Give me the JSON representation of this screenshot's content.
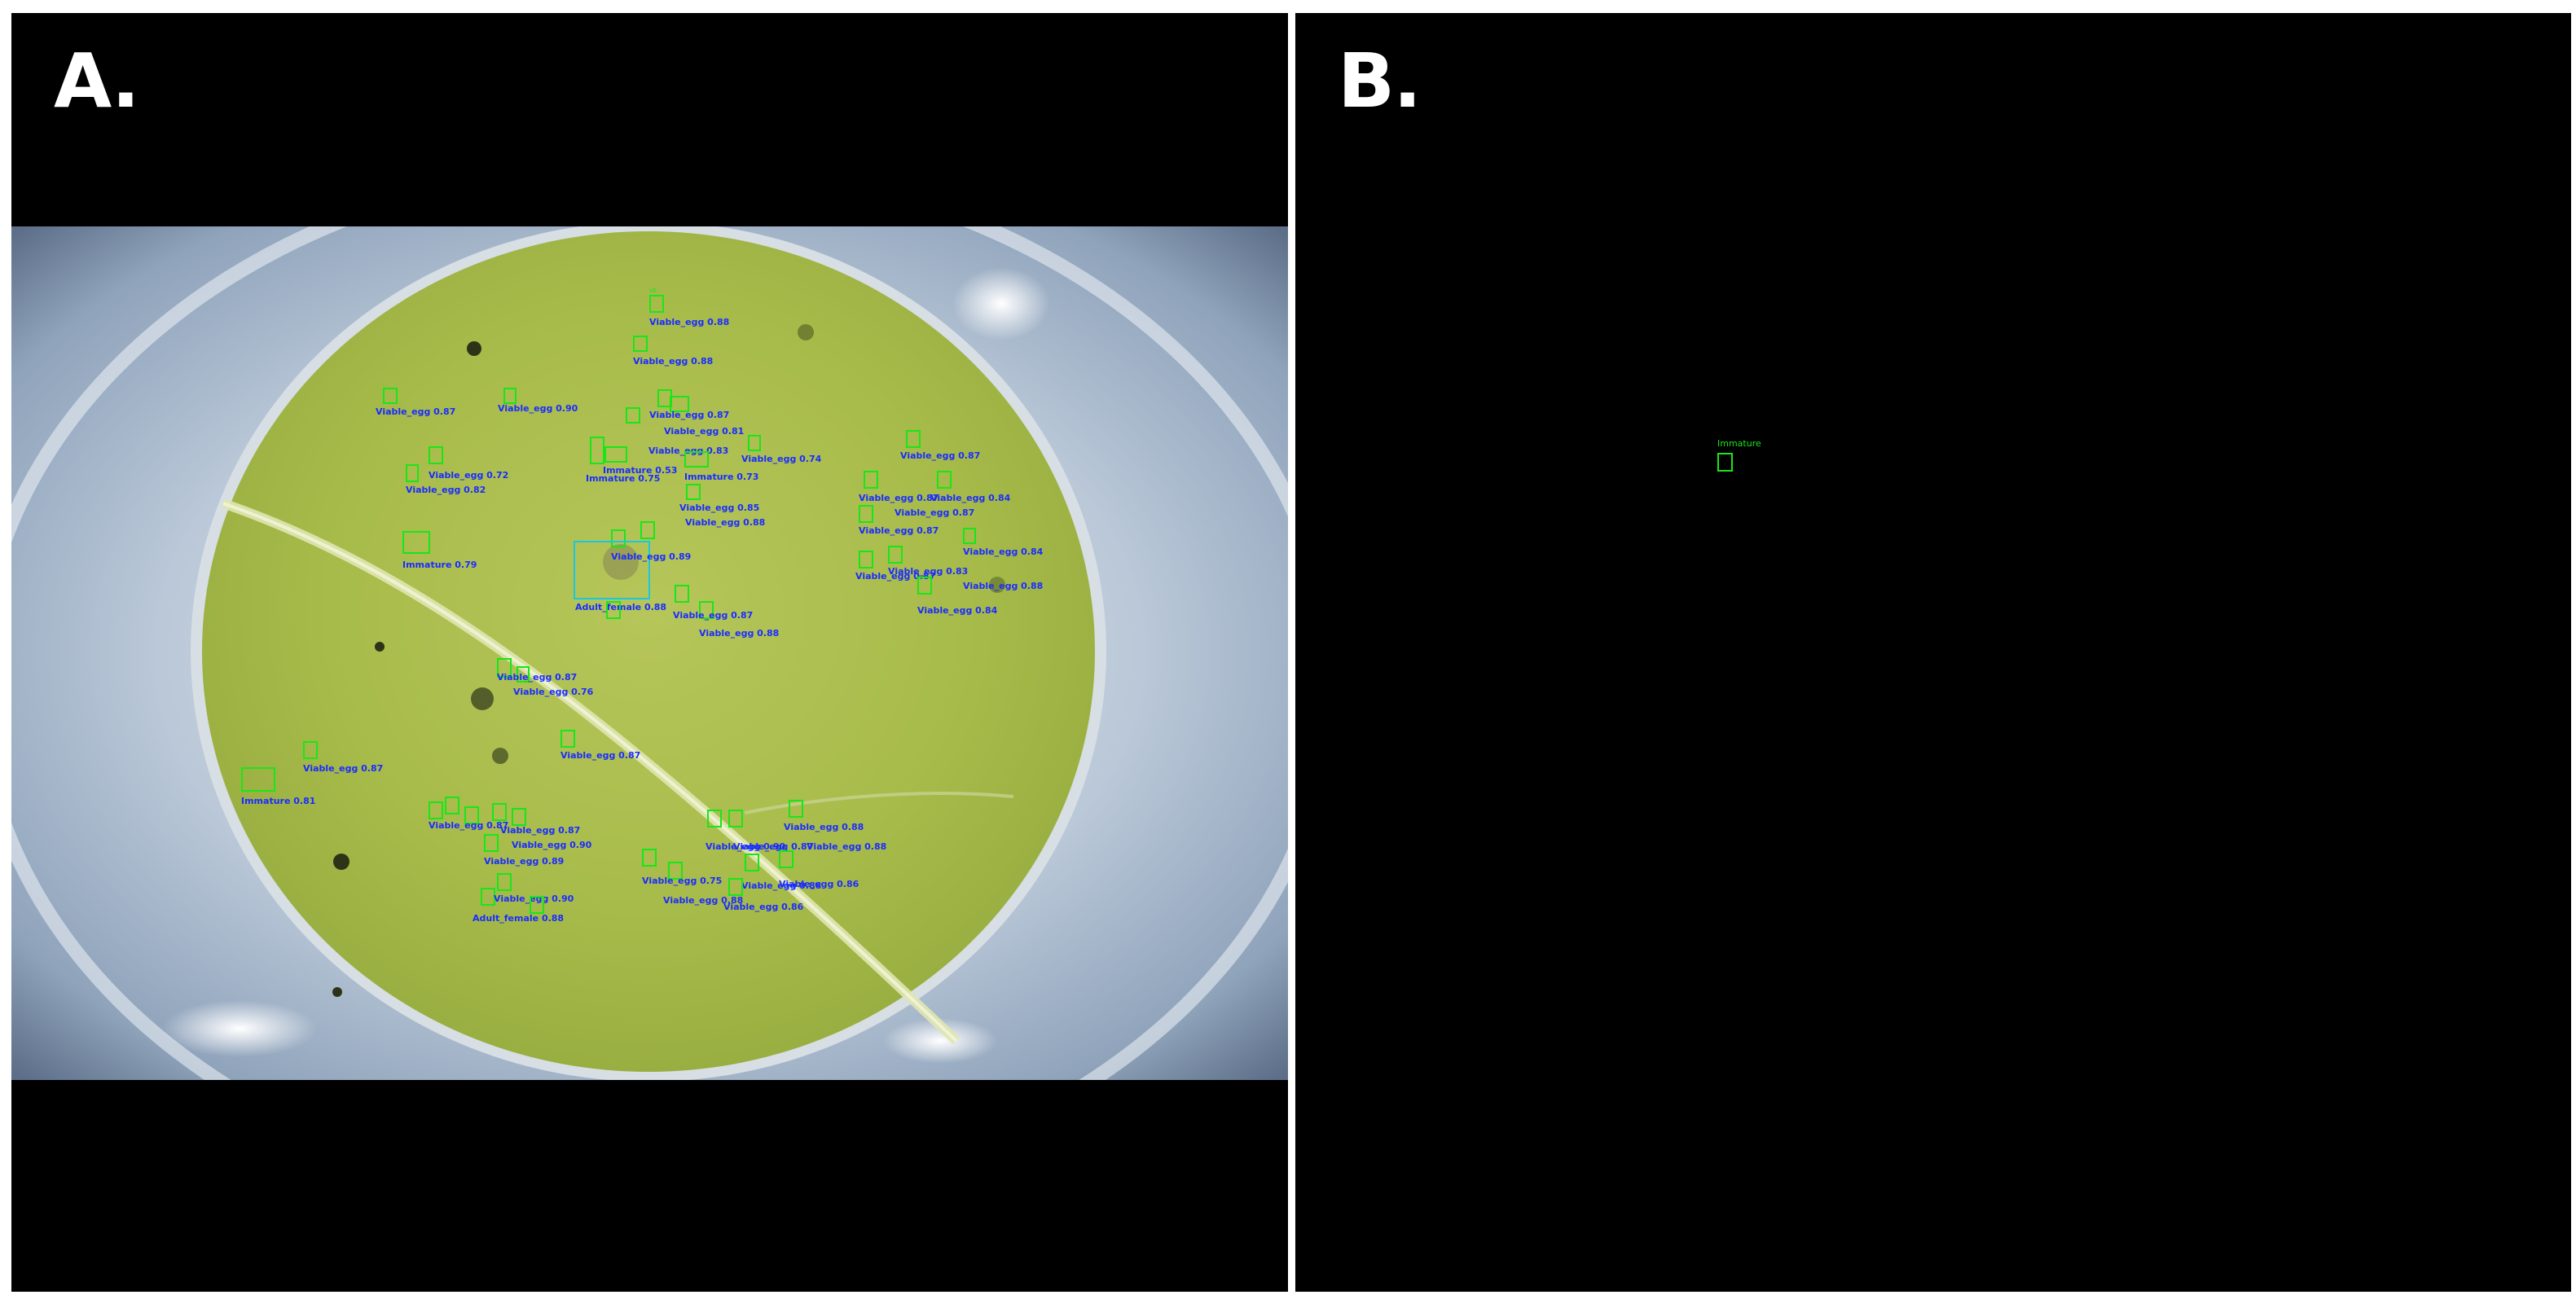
{
  "panels": {
    "a": {
      "letter": "A."
    },
    "b": {
      "letter": "B."
    }
  },
  "colors": {
    "background": "#000000",
    "separator": "#ffffff",
    "box_green": "#19e619",
    "box_cyan": "#19c8e0",
    "label_blue": "#1a2cff",
    "leaf": "#a9bf4a",
    "dish": "#b7c6d6"
  },
  "detections_a": [
    {
      "label": "Viable_egg 0.88",
      "cls": "egg"
    },
    {
      "label": "Viable_egg 0.88",
      "cls": "egg"
    },
    {
      "label": "Viable_egg 0.87",
      "cls": "egg"
    },
    {
      "label": "Viable_egg 0.90",
      "cls": "egg"
    },
    {
      "label": "Viable_egg 0.87",
      "cls": "egg"
    },
    {
      "label": "Viable_egg 0.81",
      "cls": "egg"
    },
    {
      "label": "Viable_egg 0.83",
      "cls": "egg"
    },
    {
      "label": "Viable_egg 0.74",
      "cls": "egg"
    },
    {
      "label": "Viable_egg 0.87",
      "cls": "egg"
    },
    {
      "label": "Viable_egg 0.72",
      "cls": "egg"
    },
    {
      "label": "Immature 0.53",
      "cls": "egg"
    },
    {
      "label": "Immature 0.75",
      "cls": "egg"
    },
    {
      "label": "Immature 0.73",
      "cls": "egg"
    },
    {
      "label": "Viable_egg 0.82",
      "cls": "egg"
    },
    {
      "label": "Viable_egg 0.85",
      "cls": "egg"
    },
    {
      "label": "Viable_egg 0.88",
      "cls": "egg"
    },
    {
      "label": "Viable_egg 0.87",
      "cls": "egg"
    },
    {
      "label": "Viable_egg 0.84",
      "cls": "egg"
    },
    {
      "label": "Viable_egg 0.87",
      "cls": "egg"
    },
    {
      "label": "Viable_egg 0.87",
      "cls": "egg"
    },
    {
      "label": "Immature 0.79",
      "cls": "egg"
    },
    {
      "label": "Viable_egg 0.84",
      "cls": "egg"
    },
    {
      "label": "Viable_egg 0.87",
      "cls": "egg"
    },
    {
      "label": "Viable_egg 0.83",
      "cls": "egg"
    },
    {
      "label": "Viable_egg 0.88",
      "cls": "egg"
    },
    {
      "label": "Viable_egg 0.84",
      "cls": "egg"
    },
    {
      "label": "Adult_female 0.88",
      "cls": "adult"
    },
    {
      "label": "Viable_egg 0.87",
      "cls": "egg"
    },
    {
      "label": "Viable_egg 0.89",
      "cls": "egg"
    },
    {
      "label": "Viable_egg 0.88",
      "cls": "egg"
    },
    {
      "label": "Viable_egg 0.87",
      "cls": "egg"
    },
    {
      "label": "Viable_egg 0.76",
      "cls": "egg"
    },
    {
      "label": "Viable_egg 0.87",
      "cls": "egg"
    },
    {
      "label": "Viable_egg 0.87",
      "cls": "egg"
    },
    {
      "label": "Immature 0.81",
      "cls": "egg"
    },
    {
      "label": "Viable_egg 0.87",
      "cls": "egg"
    },
    {
      "label": "Viable_egg 0.90",
      "cls": "egg"
    },
    {
      "label": "Viable_egg 0.89",
      "cls": "egg"
    },
    {
      "label": "Viable_egg 0.88",
      "cls": "egg"
    },
    {
      "label": "Viable_egg 0.90",
      "cls": "egg"
    },
    {
      "label": "Viable_egg 0.87",
      "cls": "egg"
    },
    {
      "label": "Viable_egg 0.88",
      "cls": "egg"
    },
    {
      "label": "Viable_egg 0.75",
      "cls": "egg"
    },
    {
      "label": "Viable_egg 0.88",
      "cls": "egg"
    },
    {
      "label": "Viable_egg 0.86",
      "cls": "egg"
    },
    {
      "label": "Viable_egg 0.88",
      "cls": "egg"
    },
    {
      "label": "Viable_egg 0.90",
      "cls": "egg"
    },
    {
      "label": "Viable_egg 0.87",
      "cls": "egg"
    },
    {
      "label": "Viable_egg 0.86",
      "cls": "egg"
    }
  ],
  "detection_b": {
    "label": "Immature"
  }
}
